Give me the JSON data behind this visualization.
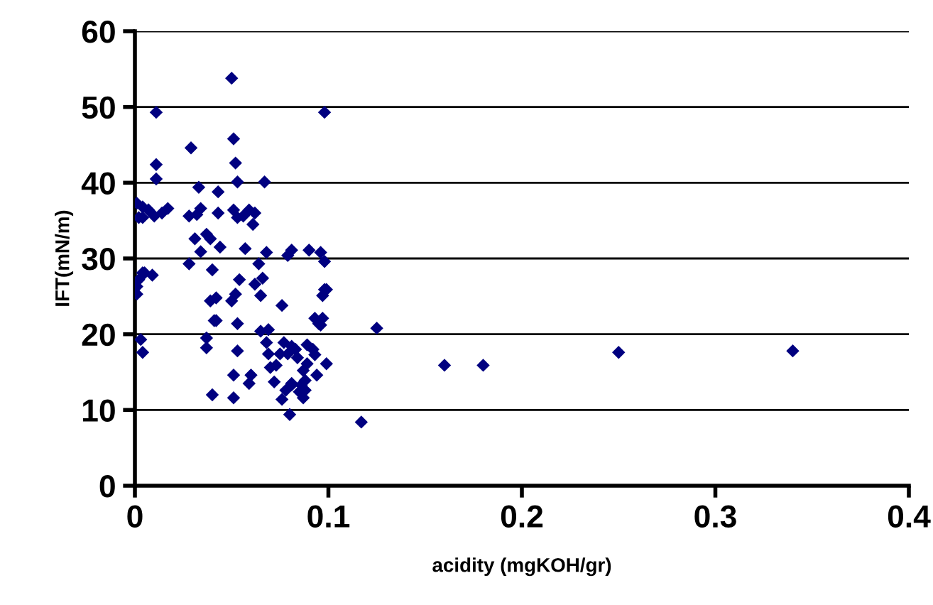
{
  "chart_data": {
    "type": "scatter",
    "xlabel": "acidity (mgKOH/gr)",
    "ylabel": "IFT(mN/m)",
    "xlim": [
      0,
      0.4
    ],
    "xticks": [
      {
        "value": 0,
        "label": "0"
      },
      0.1,
      0.2,
      0.3,
      0.4
    ],
    "ylim": [
      0,
      60
    ],
    "yticks": [
      0,
      10,
      20,
      30,
      40,
      50,
      60
    ],
    "grid": "y",
    "marker": "diamond",
    "series": [
      {
        "color": "#000080",
        "x": [
          0.001,
          0.001,
          0.002,
          0.004,
          0.005,
          0.003,
          0.004,
          0.001,
          0.004,
          0.007,
          0.01,
          0.007,
          0.002,
          0.004,
          0.011,
          0.011,
          0.011,
          0.009,
          0.017,
          0.014,
          0.029,
          0.028,
          0.028,
          0.031,
          0.032,
          0.033,
          0.034,
          0.034,
          0.037,
          0.037,
          0.04,
          0.037,
          0.039,
          0.04,
          0.042,
          0.039,
          0.041,
          0.042,
          0.043,
          0.043,
          0.044,
          0.05,
          0.051,
          0.052,
          0.053,
          0.051,
          0.053,
          0.054,
          0.052,
          0.05,
          0.053,
          0.053,
          0.051,
          0.051,
          0.056,
          0.057,
          0.059,
          0.059,
          0.06,
          0.061,
          0.062,
          0.062,
          0.064,
          0.065,
          0.066,
          0.065,
          0.067,
          0.068,
          0.068,
          0.069,
          0.07,
          0.072,
          0.073,
          0.076,
          0.075,
          0.077,
          0.079,
          0.08,
          0.081,
          0.081,
          0.081,
          0.084,
          0.085,
          0.087,
          0.087,
          0.088,
          0.089,
          0.089,
          0.09,
          0.092,
          0.093,
          0.094,
          0.097,
          0.099,
          0.099,
          0.096,
          0.097,
          0.098,
          0.095,
          0.098,
          0.098,
          0.096,
          0.093,
          0.088,
          0.081,
          0.086,
          0.078,
          0.076,
          0.069,
          0.083,
          0.079,
          0.125,
          0.117,
          0.16,
          0.18,
          0.25,
          0.34
        ],
        "values": [
          25.3,
          26.3,
          27.2,
          28.1,
          28.1,
          19.3,
          17.6,
          37.3,
          36.8,
          36.4,
          35.6,
          36.4,
          35.4,
          35.4,
          49.3,
          42.4,
          40.5,
          27.8,
          36.6,
          36.0,
          44.6,
          35.6,
          29.3,
          32.6,
          35.8,
          39.4,
          36.6,
          30.9,
          19.5,
          18.2,
          12.0,
          33.2,
          32.6,
          28.5,
          24.8,
          24.4,
          21.8,
          21.8,
          38.8,
          36.0,
          31.5,
          53.8,
          45.8,
          42.6,
          40.1,
          36.4,
          35.4,
          27.2,
          25.3,
          24.4,
          21.4,
          17.8,
          14.6,
          11.6,
          35.6,
          31.3,
          36.4,
          13.5,
          14.6,
          34.5,
          36.0,
          26.6,
          29.3,
          25.1,
          27.4,
          20.4,
          40.1,
          30.8,
          18.9,
          17.4,
          15.6,
          13.7,
          15.9,
          23.8,
          17.4,
          18.9,
          17.4,
          9.4,
          18.4,
          13.5,
          31.1,
          16.9,
          12.4,
          15.2,
          11.6,
          12.6,
          16.1,
          18.6,
          31.1,
          18.0,
          22.1,
          14.6,
          22.1,
          25.9,
          16.1,
          30.8,
          25.1,
          29.6,
          21.4,
          49.3,
          25.9,
          21.2,
          17.3,
          13.9,
          13.3,
          13.3,
          12.6,
          11.4,
          20.6,
          18.0,
          30.4,
          20.8,
          8.4,
          15.9,
          15.9,
          17.6,
          17.8
        ]
      }
    ]
  }
}
